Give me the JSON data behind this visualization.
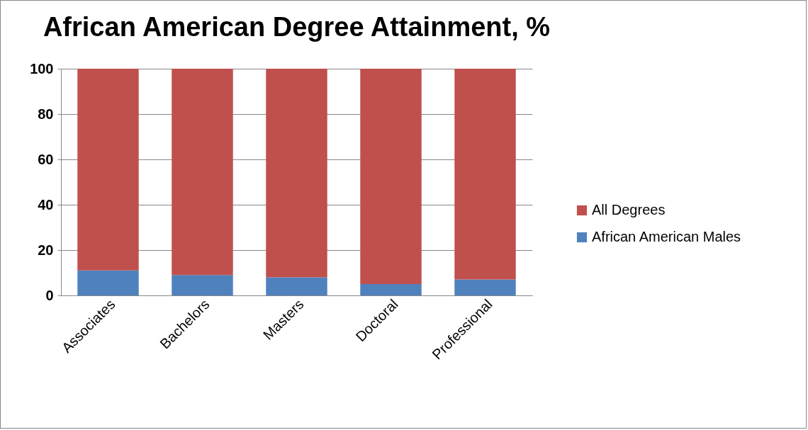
{
  "chart_data": {
    "type": "bar",
    "title": "African American Degree Attainment, %",
    "categories": [
      "Associates",
      "Bachelors",
      "Masters",
      "Doctoral",
      "Professional"
    ],
    "series": [
      {
        "name": "African American Males",
        "color": "#4f81bd",
        "values": [
          11,
          9,
          8,
          5,
          7
        ]
      },
      {
        "name": "All Degrees",
        "color": "#c0504d",
        "values": [
          89,
          91,
          92,
          95,
          93
        ]
      }
    ],
    "stacked": true,
    "ylim": [
      0,
      100
    ],
    "yticks": [
      0,
      20,
      40,
      60,
      80,
      100
    ],
    "grid": "y",
    "legend": "right"
  }
}
